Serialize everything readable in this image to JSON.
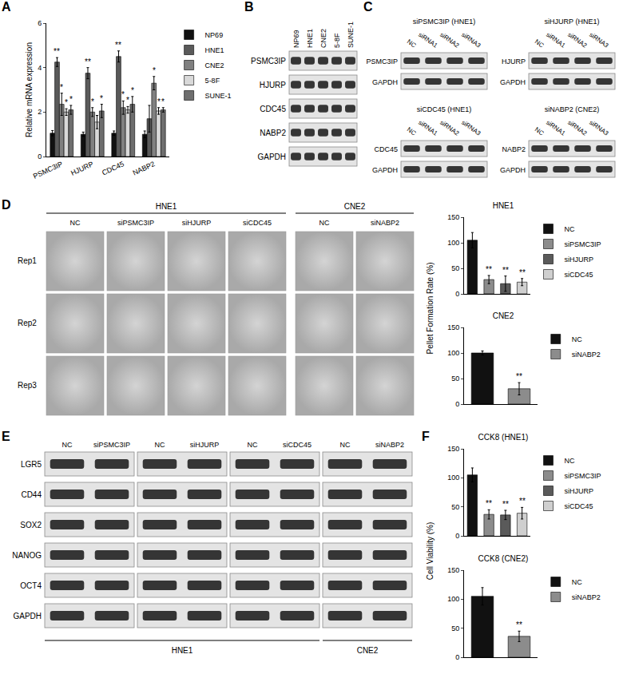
{
  "panel_letters": [
    "A",
    "B",
    "C",
    "D",
    "E",
    "F"
  ],
  "chart_data": [
    {
      "type": "bar",
      "categories": [
        "PSMC3IP",
        "HJURP",
        "CDC45",
        "NABP2"
      ],
      "ylabel": "Relative mRNA expression",
      "ylim": [
        0,
        6
      ],
      "yticks": [
        0,
        2,
        4,
        6
      ],
      "legend": "right",
      "series": [
        {
          "name": "NP69",
          "color": "#111111",
          "values": [
            1.05,
            1.0,
            1.05,
            1.0
          ],
          "errors": [
            0.12,
            0.1,
            0.1,
            0.15
          ],
          "significance": [
            null,
            null,
            null,
            null
          ]
        },
        {
          "name": "HNE1",
          "color": "#5a5a5a",
          "values": [
            4.25,
            3.75,
            4.5,
            1.7
          ],
          "errors": [
            0.2,
            0.25,
            0.25,
            0.6
          ],
          "significance": [
            "**",
            "**",
            "**",
            null
          ]
        },
        {
          "name": "CNE2",
          "color": "#808080",
          "values": [
            2.35,
            2.0,
            2.2,
            3.3
          ],
          "errors": [
            0.5,
            0.2,
            0.3,
            0.3
          ],
          "significance": [
            "*",
            "*",
            "*",
            "*"
          ]
        },
        {
          "name": "5-8F",
          "color": "#d9d9d9",
          "values": [
            2.0,
            1.55,
            2.1,
            2.05
          ],
          "errors": [
            0.15,
            0.3,
            0.15,
            0.15
          ],
          "significance": [
            "*",
            null,
            "*",
            "*"
          ]
        },
        {
          "name": "SUNE-1",
          "color": "#6e6e6e",
          "values": [
            2.1,
            2.05,
            2.35,
            2.1
          ],
          "errors": [
            0.2,
            0.3,
            0.35,
            0.1
          ],
          "significance": [
            "*",
            "*",
            "*",
            "*"
          ]
        }
      ]
    },
    {
      "type": "bar",
      "title": "HNE1",
      "categories": [
        "NC",
        "siPSMC3IP",
        "siHJURP",
        "siCDC45"
      ],
      "values": [
        105,
        28,
        20,
        23
      ],
      "errors": [
        15,
        8,
        15,
        7
      ],
      "significance": [
        null,
        "**",
        "**",
        "**"
      ],
      "colors": [
        "#111111",
        "#8c8c8c",
        "#5a5a5a",
        "#cfcfcf"
      ],
      "ylim": [
        0,
        150
      ],
      "yticks": [
        0,
        50,
        100,
        150
      ],
      "legend": "right",
      "tick_labels": "y"
    },
    {
      "type": "bar",
      "title": "CNE2",
      "categories": [
        "NC",
        "siNABP2"
      ],
      "values": [
        100,
        30
      ],
      "errors": [
        4,
        12
      ],
      "significance": [
        null,
        "**"
      ],
      "colors": [
        "#111111",
        "#8c8c8c"
      ],
      "ylim": [
        0,
        150
      ],
      "yticks": [
        0,
        50,
        100,
        150
      ],
      "legend": "right",
      "tick_labels": "y"
    },
    {
      "type": "bar",
      "title": "CCK8 (HNE1)",
      "categories": [
        "NC",
        "siPSMC3IP",
        "siHJURP",
        "siCDC45"
      ],
      "values": [
        105,
        37,
        36,
        39
      ],
      "errors": [
        12,
        8,
        8,
        10
      ],
      "significance": [
        null,
        "**",
        "**",
        "**"
      ],
      "colors": [
        "#111111",
        "#8c8c8c",
        "#5a5a5a",
        "#cfcfcf"
      ],
      "ylim": [
        0,
        150
      ],
      "yticks": [
        0,
        50,
        100,
        150
      ],
      "legend": "right",
      "tick_labels": "y"
    },
    {
      "type": "bar",
      "title": "CCK8 (CNE2)",
      "categories": [
        "NC",
        "siNABP2"
      ],
      "values": [
        105,
        36
      ],
      "errors": [
        15,
        9
      ],
      "significance": [
        null,
        "**"
      ],
      "colors": [
        "#111111",
        "#8c8c8c"
      ],
      "ylim": [
        0,
        150
      ],
      "yticks": [
        0,
        50,
        100,
        150
      ],
      "legend": "right",
      "tick_labels": "y"
    }
  ],
  "shared_ylabels": {
    "D": "Pellet Formation Rate (%)",
    "F": "Cell Viability (%)"
  },
  "blots_B": {
    "lanes": [
      "NP69",
      "HNE1",
      "CNE2",
      "5-8F",
      "SUNE-1"
    ],
    "rows": [
      "PSMC3IP",
      "HJURP",
      "CDC45",
      "NABP2",
      "GAPDH"
    ]
  },
  "blots_C": [
    {
      "title": "siPSMC3IP (HNE1)",
      "lanes": [
        "NC",
        "siRNA1",
        "siRNA2",
        "siRNA3"
      ],
      "rows": [
        "PSMC3IP",
        "GAPDH"
      ]
    },
    {
      "title": "siHJURP (HNE1)",
      "lanes": [
        "NC",
        "siRNA1",
        "siRNA2",
        "siRNA3"
      ],
      "rows": [
        "HJURP",
        "GAPDH"
      ]
    },
    {
      "title": "siCDC45 (HNE1)",
      "lanes": [
        "NC",
        "siRNA1",
        "siRNA2",
        "siRNA3"
      ],
      "rows": [
        "CDC45",
        "GAPDH"
      ]
    },
    {
      "title": "siNABP2 (CNE2)",
      "lanes": [
        "NC",
        "siRNA1",
        "siRNA2",
        "siRNA3"
      ],
      "rows": [
        "NABP2",
        "GAPDH"
      ]
    }
  ],
  "sphere_images_D": {
    "groups": [
      {
        "label": "HNE1",
        "columns": [
          "NC",
          "siPSMC3IP",
          "siHJURP",
          "siCDC45"
        ]
      },
      {
        "label": "CNE2",
        "columns": [
          "NC",
          "siNABP2"
        ]
      }
    ],
    "rows": [
      "Rep1",
      "Rep2",
      "Rep3"
    ]
  },
  "blots_E": {
    "rows": [
      "LGR5",
      "CD44",
      "SOX2",
      "NANOG",
      "OCT4",
      "GAPDH"
    ],
    "cell_lines": [
      {
        "label": "HNE1",
        "blots": [
          {
            "lanes": [
              "NC",
              "siPSMC3IP"
            ]
          },
          {
            "lanes": [
              "NC",
              "siHJURP"
            ]
          },
          {
            "lanes": [
              "NC",
              "siCDC45"
            ]
          }
        ]
      },
      {
        "label": "CNE2",
        "blots": [
          {
            "lanes": [
              "NC",
              "siNABP2"
            ]
          }
        ]
      }
    ]
  }
}
